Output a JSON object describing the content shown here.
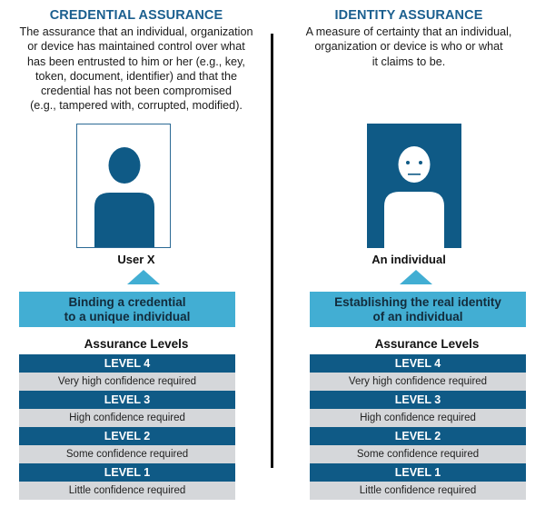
{
  "colors": {
    "title_blue": "#1b5f8f",
    "dark_blue": "#0f5a86",
    "light_blue": "#42aed3",
    "row_gray": "#d5d7da"
  },
  "credential": {
    "title": "CREDENTIAL ASSURANCE",
    "description_lines": [
      "The assurance that an individual, organization",
      "or device has maintained control over what",
      "has been entrusted to him or her (e.g., key,",
      "token, document, identifier) and that the",
      "credential has not been compromised",
      "(e.g., tampered with, corrupted, modified)."
    ],
    "figure_icon": "user-silhouette-icon",
    "caption": "User X",
    "banner_lines": [
      "Binding a credential",
      "to a unique individual"
    ],
    "levels_heading": "Assurance Levels",
    "levels": [
      {
        "label": "LEVEL 4",
        "description": "Very high confidence required"
      },
      {
        "label": "LEVEL 3",
        "description": "High confidence required"
      },
      {
        "label": "LEVEL 2",
        "description": "Some confidence required"
      },
      {
        "label": "LEVEL 1",
        "description": "Little confidence required"
      }
    ]
  },
  "identity": {
    "title": "IDENTITY ASSURANCE",
    "description_lines": [
      "A measure of certainty that an individual,",
      "organization or device is who or what",
      "it claims to be."
    ],
    "figure_icon": "person-face-icon",
    "caption": "An individual",
    "banner_lines": [
      "Establishing the real identity",
      "of an individual"
    ],
    "levels_heading": "Assurance Levels",
    "levels": [
      {
        "label": "LEVEL 4",
        "description": "Very high confidence required"
      },
      {
        "label": "LEVEL 3",
        "description": "High confidence required"
      },
      {
        "label": "LEVEL 2",
        "description": "Some confidence required"
      },
      {
        "label": "LEVEL 1",
        "description": "Little confidence required"
      }
    ]
  }
}
